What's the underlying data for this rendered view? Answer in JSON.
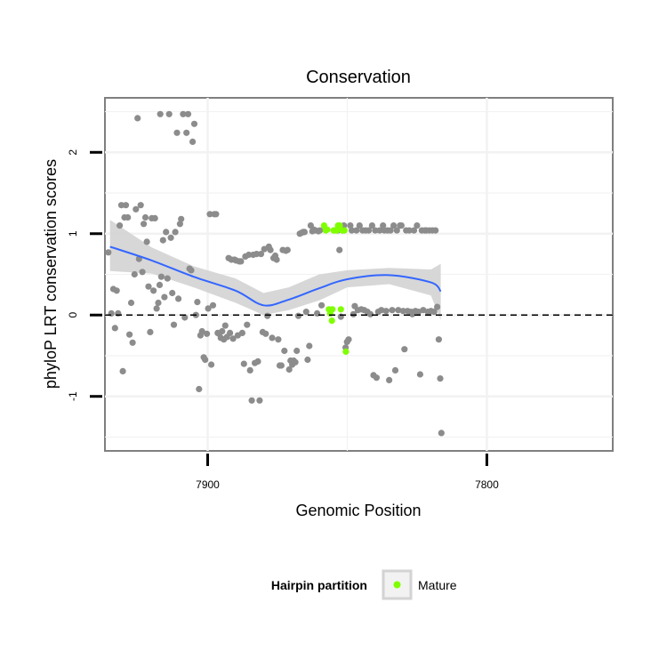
{
  "chart_data": {
    "type": "scatter",
    "title": "Conservation",
    "xlabel": "Genomic Position",
    "ylabel": "phyloP LRT conservation scores",
    "x_reversed": true,
    "xlim": [
      7936.8,
      7754.9
    ],
    "ylim": [
      -1.67,
      2.67
    ],
    "x_ticks": [
      7900,
      7800
    ],
    "y_ticks": [
      -1,
      0,
      1,
      2
    ],
    "x_tick_labels": [
      "7900",
      "7800"
    ],
    "y_tick_labels": [
      "-1",
      "0",
      "1",
      "2"
    ],
    "grid": true,
    "reference_line": {
      "y": 0,
      "style": "dashed"
    },
    "legend": {
      "title": "Hairpin partition",
      "position": "bottom",
      "entries": [
        {
          "label": "Mature",
          "color": "#7fff00"
        }
      ]
    },
    "colors": {
      "points": "#8c8c8c",
      "mature": "#7fff00",
      "smooth": "#3366ff",
      "ribbon": "#d3d3d3",
      "panel_border": "#7f7f7f",
      "grid": "#f2f2f2"
    },
    "series": [
      {
        "name": "",
        "color": "#8c8c8c",
        "points": [
          [
            7935.6,
            0.77
          ],
          [
            7934.5,
            0.02
          ],
          [
            7933.8,
            0.32
          ],
          [
            7933.2,
            -0.16
          ],
          [
            7932.6,
            0.3
          ],
          [
            7932.1,
            0.02
          ],
          [
            7931.5,
            1.1
          ],
          [
            7930.9,
            1.35
          ],
          [
            7930.4,
            -0.69
          ],
          [
            7929.8,
            1.2
          ],
          [
            7929.3,
            1.35
          ],
          [
            7928.6,
            1.2
          ],
          [
            7928.0,
            -0.24
          ],
          [
            7927.4,
            0.15
          ],
          [
            7926.9,
            -0.34
          ],
          [
            7926.2,
            0.5
          ],
          [
            7925.7,
            1.3
          ],
          [
            7925.1,
            2.42
          ],
          [
            7924.6,
            0.69
          ],
          [
            7924.0,
            1.35
          ],
          [
            7923.4,
            0.53
          ],
          [
            7922.9,
            1.12
          ],
          [
            7922.3,
            1.2
          ],
          [
            7921.8,
            0.9
          ],
          [
            7921.2,
            0.35
          ],
          [
            7920.6,
            -0.21
          ],
          [
            7920.0,
            1.19
          ],
          [
            7919.4,
            0.3
          ],
          [
            7918.9,
            1.19
          ],
          [
            7918.3,
            0.08
          ],
          [
            7917.7,
            0.15
          ],
          [
            7917.2,
            0.37
          ],
          [
            7917.0,
            2.47
          ],
          [
            7916.6,
            0.47
          ],
          [
            7916.0,
            0.92
          ],
          [
            7915.5,
            0.22
          ],
          [
            7914.9,
            1.02
          ],
          [
            7914.4,
            0.45
          ],
          [
            7913.8,
            2.47
          ],
          [
            7913.2,
            0.95
          ],
          [
            7912.7,
            0.27
          ],
          [
            7912.1,
            -0.12
          ],
          [
            7911.6,
            1.02
          ],
          [
            7911.0,
            2.24
          ],
          [
            7910.5,
            0.2
          ],
          [
            7909.9,
            1.12
          ],
          [
            7909.5,
            1.18
          ],
          [
            7908.8,
            2.47
          ],
          [
            7908.2,
            -0.03
          ],
          [
            7907.6,
            2.24
          ],
          [
            7907.0,
            2.47
          ],
          [
            7906.5,
            0.57
          ],
          [
            7905.9,
            0.55
          ],
          [
            7905.4,
            2.13
          ],
          [
            7904.8,
            2.35
          ],
          [
            7904.2,
            0.0
          ],
          [
            7903.7,
            0.16
          ],
          [
            7903.1,
            -0.91
          ],
          [
            7902.6,
            -0.25
          ],
          [
            7902.0,
            -0.2
          ],
          [
            7901.4,
            -0.52
          ],
          [
            7900.9,
            -0.55
          ],
          [
            7900.3,
            -0.23
          ],
          [
            7899.8,
            0.08
          ],
          [
            7899.2,
            1.24
          ],
          [
            7898.7,
            -0.61
          ],
          [
            7898.1,
            0.12
          ],
          [
            7897.6,
            1.24
          ],
          [
            7897.0,
            1.24
          ],
          [
            7896.4,
            -0.22
          ],
          [
            7895.9,
            -0.23
          ],
          [
            7895.3,
            -0.28
          ],
          [
            7894.8,
            -0.2
          ],
          [
            7894.2,
            -0.3
          ],
          [
            7893.7,
            -0.13
          ],
          [
            7893.1,
            -0.27
          ],
          [
            7892.5,
            0.7
          ],
          [
            7892.0,
            -0.22
          ],
          [
            7891.5,
            0.68
          ],
          [
            7890.9,
            -0.29
          ],
          [
            7890.4,
            0.68
          ],
          [
            7889.8,
            0.67
          ],
          [
            7889.2,
            -0.25
          ],
          [
            7888.7,
            0.66
          ],
          [
            7888.1,
            0.66
          ],
          [
            7887.6,
            -0.22
          ],
          [
            7887.0,
            -0.6
          ],
          [
            7886.5,
            0.72
          ],
          [
            7885.9,
            -0.12
          ],
          [
            7885.3,
            0.74
          ],
          [
            7884.8,
            -0.68
          ],
          [
            7884.2,
            -1.05
          ],
          [
            7883.7,
            0.74
          ],
          [
            7883.1,
            -0.59
          ],
          [
            7882.5,
            0.75
          ],
          [
            7882.0,
            -0.57
          ],
          [
            7881.4,
            -1.05
          ],
          [
            7880.9,
            0.75
          ],
          [
            7880.3,
            -0.21
          ],
          [
            7879.7,
            0.81
          ],
          [
            7879.2,
            -0.23
          ],
          [
            7878.6,
            -0.01
          ],
          [
            7878.1,
            0.84
          ],
          [
            7877.5,
            0.8
          ],
          [
            7876.9,
            -0.28
          ],
          [
            7876.4,
            0.7
          ],
          [
            7875.8,
            0.73
          ],
          [
            7875.3,
            0.68
          ],
          [
            7874.7,
            -0.3
          ],
          [
            7874.2,
            -0.62
          ],
          [
            7873.6,
            -0.62
          ],
          [
            7873.1,
            0.8
          ],
          [
            7872.5,
            -0.44
          ],
          [
            7872.0,
            0.79
          ],
          [
            7871.4,
            0.8
          ],
          [
            7870.8,
            -0.67
          ],
          [
            7870.3,
            -0.56
          ],
          [
            7869.7,
            -0.61
          ],
          [
            7869.2,
            -0.56
          ],
          [
            7868.6,
            -0.58
          ],
          [
            7868.1,
            -0.44
          ],
          [
            7867.5,
            -0.01
          ],
          [
            7867.0,
            1.0
          ],
          [
            7866.4,
            1.01
          ],
          [
            7865.8,
            1.02
          ],
          [
            7865.3,
            1.02
          ],
          [
            7864.7,
            0.04
          ],
          [
            7864.2,
            -0.55
          ],
          [
            7863.6,
            -0.38
          ],
          [
            7863.1,
            1.1
          ],
          [
            7862.5,
            1.03
          ],
          [
            7862.0,
            1.05
          ],
          [
            7861.4,
            1.04
          ],
          [
            7860.8,
            0.02
          ],
          [
            7860.3,
            1.03
          ],
          [
            7859.8,
            1.04
          ],
          [
            7859.2,
            0.12
          ],
          [
            7853.4,
            1.04
          ],
          [
            7852.8,
            0.8
          ],
          [
            7852.3,
            -0.02
          ],
          [
            7851.7,
            1.04
          ],
          [
            7851.2,
            1.1
          ],
          [
            7850.6,
            -0.4
          ],
          [
            7850.1,
            -0.33
          ],
          [
            7849.5,
            -0.3
          ],
          [
            7848.9,
            1.1
          ],
          [
            7848.4,
            1.04
          ],
          [
            7847.8,
            0.01
          ],
          [
            7847.3,
            0.11
          ],
          [
            7846.7,
            1.04
          ],
          [
            7846.2,
            0.06
          ],
          [
            7845.6,
            1.1
          ],
          [
            7845.0,
            0.07
          ],
          [
            7844.5,
            1.04
          ],
          [
            7843.9,
            0.06
          ],
          [
            7843.4,
            1.04
          ],
          [
            7842.8,
            0.04
          ],
          [
            7842.3,
            1.04
          ],
          [
            7841.7,
            0.01
          ],
          [
            7841.1,
            1.1
          ],
          [
            7840.6,
            -0.74
          ],
          [
            7840.0,
            1.04
          ],
          [
            7839.5,
            -0.77
          ],
          [
            7838.9,
            0.04
          ],
          [
            7838.4,
            1.04
          ],
          [
            7837.8,
            0.06
          ],
          [
            7837.2,
            1.1
          ],
          [
            7836.7,
            1.04
          ],
          [
            7836.1,
            0.05
          ],
          [
            7835.6,
            1.04
          ],
          [
            7835.0,
            -0.8
          ],
          [
            7834.5,
            1.04
          ],
          [
            7833.9,
            0.06
          ],
          [
            7833.4,
            1.1
          ],
          [
            7832.8,
            -0.68
          ],
          [
            7832.2,
            1.04
          ],
          [
            7831.7,
            0.06
          ],
          [
            7831.1,
            1.1
          ],
          [
            7830.6,
            1.1
          ],
          [
            7830.0,
            0.05
          ],
          [
            7829.5,
            -0.42
          ],
          [
            7828.9,
            1.04
          ],
          [
            7828.4,
            0.05
          ],
          [
            7827.8,
            1.04
          ],
          [
            7827.2,
            0.04
          ],
          [
            7826.7,
            0.01
          ],
          [
            7826.1,
            1.04
          ],
          [
            7825.6,
            0.05
          ],
          [
            7825.0,
            1.1
          ],
          [
            7824.5,
            0.04
          ],
          [
            7823.9,
            -0.73
          ],
          [
            7823.3,
            1.04
          ],
          [
            7822.8,
            0.06
          ],
          [
            7822.2,
            1.04
          ],
          [
            7821.7,
            1.04
          ],
          [
            7821.1,
            0.04
          ],
          [
            7820.6,
            1.04
          ],
          [
            7820.0,
            0.05
          ],
          [
            7819.5,
            1.04
          ],
          [
            7818.9,
            0.04
          ],
          [
            7818.4,
            1.04
          ],
          [
            7817.8,
            0.1
          ],
          [
            7817.2,
            -0.3
          ],
          [
            7816.7,
            -0.78
          ],
          [
            7816.3,
            -1.45
          ]
        ]
      },
      {
        "name": "Mature",
        "color": "#7fff00",
        "points": [
          [
            7858.3,
            1.1
          ],
          [
            7857.7,
            1.04
          ],
          [
            7857.2,
            1.05
          ],
          [
            7856.6,
            0.07
          ],
          [
            7856.1,
            0.02
          ],
          [
            7855.5,
            -0.07
          ],
          [
            7855.3,
            0.07
          ],
          [
            7854.9,
            1.04
          ],
          [
            7854.4,
            1.04
          ],
          [
            7853.8,
            1.04
          ],
          [
            7853.3,
            1.1
          ],
          [
            7852.7,
            1.1
          ],
          [
            7852.3,
            0.07
          ],
          [
            7851.8,
            1.04
          ],
          [
            7851.0,
            1.04
          ],
          [
            7850.5,
            -0.45
          ]
        ]
      }
    ],
    "smooth": {
      "x": [
        7935.0,
        7920.0,
        7905.0,
        7890.0,
        7880.0,
        7871.0,
        7860.0,
        7850.0,
        7835.0,
        7820.0,
        7816.5
      ],
      "y": [
        0.84,
        0.67,
        0.47,
        0.3,
        0.12,
        0.19,
        0.33,
        0.44,
        0.49,
        0.4,
        0.29
      ],
      "upper": [
        1.17,
        0.83,
        0.6,
        0.45,
        0.27,
        0.34,
        0.5,
        0.55,
        0.58,
        0.56,
        0.63
      ],
      "lower": [
        0.54,
        0.51,
        0.34,
        0.15,
        0.0,
        0.06,
        0.18,
        0.34,
        0.38,
        0.24,
        -0.06
      ]
    }
  }
}
